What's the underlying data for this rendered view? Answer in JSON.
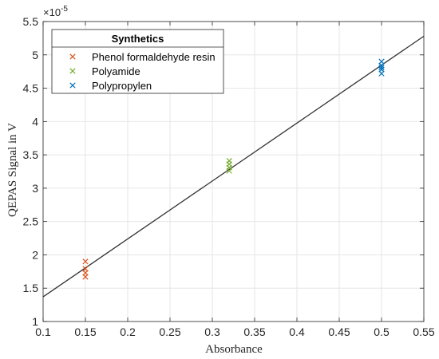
{
  "chart_data": {
    "type": "scatter",
    "title": "",
    "xlabel": "Absorbance",
    "ylabel": "QEPAS Signal in V",
    "y_exponent": {
      "base": "×10",
      "power": "-5"
    },
    "xlim": [
      0.1,
      0.55
    ],
    "ylim": [
      1,
      5.5
    ],
    "xticks": [
      0.1,
      0.15,
      0.2,
      0.25,
      0.3,
      0.35,
      0.4,
      0.45,
      0.5,
      0.55
    ],
    "xtick_labels": [
      "0.1",
      "0.15",
      "0.2",
      "0.25",
      "0.3",
      "0.35",
      "0.4",
      "0.45",
      "0.5",
      "0.55"
    ],
    "yticks": [
      1,
      1.5,
      2,
      2.5,
      3,
      3.5,
      4,
      4.5,
      5,
      5.5
    ],
    "ytick_labels": [
      "1",
      "1.5",
      "2",
      "2.5",
      "3",
      "3.5",
      "4",
      "4.5",
      "5",
      "5.5"
    ],
    "grid": true,
    "legend": {
      "title": "Synthetics",
      "placement": "top-left"
    },
    "marker": "×",
    "series": [
      {
        "name": "Phenol formaldehyde resin",
        "color": "#D95319",
        "points": [
          [
            0.15,
            1.9
          ],
          [
            0.15,
            1.79
          ],
          [
            0.15,
            1.73
          ],
          [
            0.15,
            1.67
          ]
        ]
      },
      {
        "name": "Polyamide",
        "color": "#77AC30",
        "points": [
          [
            0.32,
            3.41
          ],
          [
            0.32,
            3.36
          ],
          [
            0.32,
            3.31
          ],
          [
            0.32,
            3.26
          ]
        ]
      },
      {
        "name": "Polypropylen",
        "color": "#0072BD",
        "points": [
          [
            0.5,
            4.9
          ],
          [
            0.5,
            4.84
          ],
          [
            0.5,
            4.81
          ],
          [
            0.5,
            4.78
          ],
          [
            0.5,
            4.72
          ]
        ]
      }
    ],
    "fit_line": {
      "color": "#333333",
      "points": [
        [
          0.1,
          1.37
        ],
        [
          0.55,
          5.28
        ]
      ]
    }
  }
}
